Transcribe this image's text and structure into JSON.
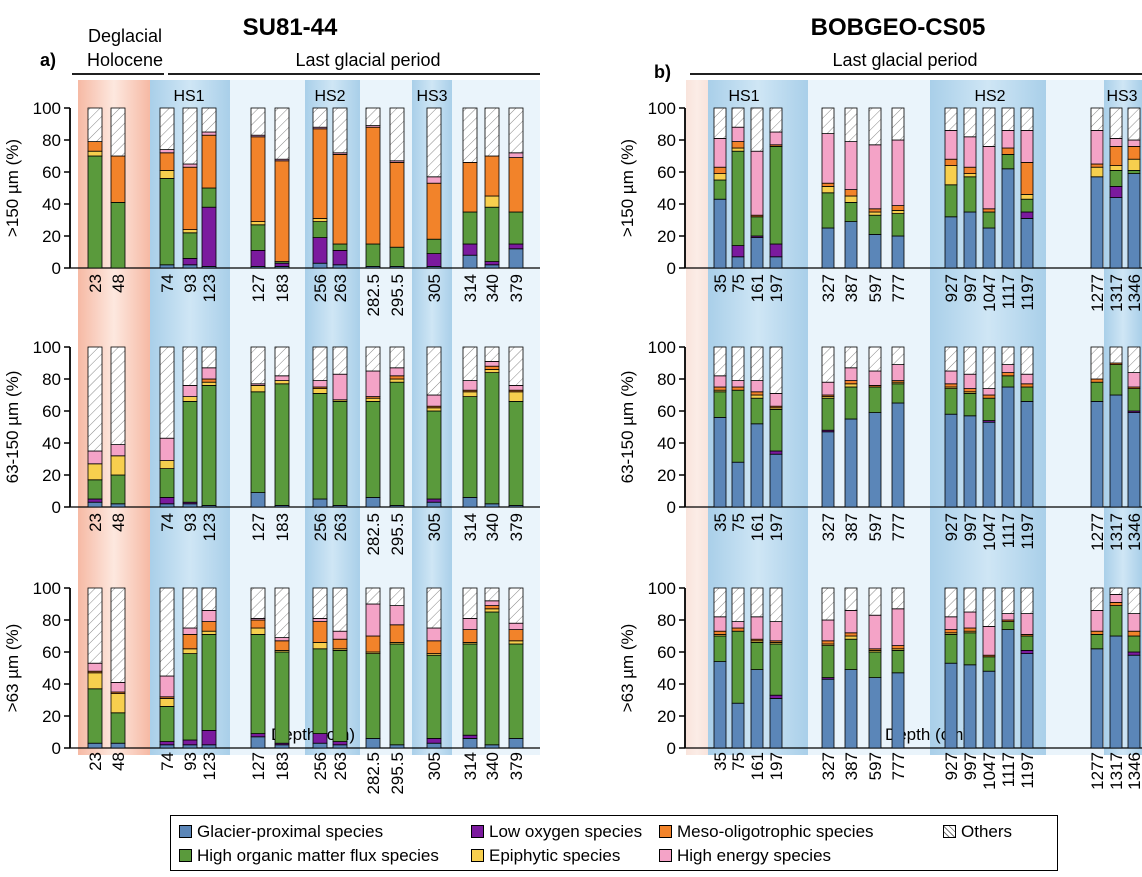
{
  "panels": [
    {
      "title": "SU81-44",
      "panel_letter": "a)",
      "period_labels": {
        "deglacial": "Deglacial",
        "holocene": "Holocene",
        "last_glacial": "Last glacial period"
      },
      "events": [
        "HS1",
        "HS2",
        "HS3"
      ]
    },
    {
      "title": "BOBGEO-CS05",
      "panel_letter": "b)",
      "period_labels": {
        "last_glacial": "Last glacial period"
      },
      "events": [
        "HS1",
        "HS2",
        "HS3"
      ]
    }
  ],
  "axis_labels": {
    "y_150": ">150 µm (%)",
    "y_63_150": "63-150 µm (%)",
    "y_63": ">63 µm (%)",
    "x": "Depth (cm)"
  },
  "y_ticks": [
    "0",
    "20",
    "40",
    "60",
    "80",
    "100"
  ],
  "legend": {
    "items": [
      {
        "key": "glacier",
        "label": "Glacier-proximal species",
        "color": "#5b86b8"
      },
      {
        "key": "lowox",
        "label": "Low oxygen species",
        "color": "#7b1a9e"
      },
      {
        "key": "meso",
        "label": "Meso-oligotrophic species",
        "color": "#f2832a"
      },
      {
        "key": "others",
        "label": "Others",
        "color": "#ffffff"
      },
      {
        "key": "organic",
        "label": "High organic matter flux species",
        "color": "#5a9a3c"
      },
      {
        "key": "epiphytic",
        "label": "Epiphytic species",
        "color": "#f7cf4e"
      },
      {
        "key": "energy",
        "label": "High energy species",
        "color": "#f4a3c7"
      }
    ]
  },
  "chart_data": [
    {
      "type": "bar",
      "stacked": true,
      "core": "SU81-44",
      "ylim": [
        0,
        100
      ],
      "ylabel": ">150 µm (%)",
      "categories": [
        "23",
        "48",
        "74",
        "93",
        "123",
        "127",
        "183",
        "256",
        "263",
        "282.5",
        "295.5",
        "305",
        "314",
        "340",
        "379"
      ],
      "series": [
        {
          "name": "Glacier-proximal species",
          "values": [
            0,
            0,
            2,
            2,
            1,
            1,
            1,
            3,
            2,
            1,
            1,
            1,
            8,
            2,
            12
          ]
        },
        {
          "name": "Low oxygen species",
          "values": [
            0,
            0,
            0,
            4,
            37,
            10,
            2,
            16,
            9,
            0,
            0,
            8,
            7,
            2,
            3
          ]
        },
        {
          "name": "High organic matter flux species",
          "values": [
            70,
            41,
            54,
            16,
            12,
            16,
            1,
            10,
            4,
            14,
            12,
            9,
            20,
            34,
            20
          ]
        },
        {
          "name": "Epiphytic species",
          "values": [
            3,
            0,
            5,
            2,
            0,
            2,
            0,
            2,
            0,
            0,
            0,
            0,
            0,
            7,
            0
          ]
        },
        {
          "name": "Meso-oligotrophic species",
          "values": [
            6,
            29,
            11,
            39,
            33,
            53,
            63,
            56,
            56,
            73,
            53,
            35,
            31,
            25,
            34
          ]
        },
        {
          "name": "High energy species",
          "values": [
            0,
            0,
            2,
            2,
            2,
            1,
            1,
            1,
            1,
            1,
            1,
            4,
            0,
            0,
            3
          ]
        },
        {
          "name": "Others",
          "values": [
            21,
            30,
            26,
            35,
            15,
            17,
            32,
            12,
            28,
            11,
            33,
            43,
            34,
            30,
            28
          ]
        }
      ]
    },
    {
      "type": "bar",
      "stacked": true,
      "core": "SU81-44",
      "ylim": [
        0,
        100
      ],
      "ylabel": "63-150 µm (%)",
      "categories": [
        "23",
        "48",
        "74",
        "93",
        "123",
        "127",
        "183",
        "256",
        "263",
        "282.5",
        "295.5",
        "305",
        "314",
        "340",
        "379"
      ],
      "series": [
        {
          "name": "Glacier-proximal species",
          "values": [
            3,
            2,
            2,
            2,
            1,
            9,
            1,
            5,
            1,
            6,
            1,
            3,
            6,
            2,
            1
          ]
        },
        {
          "name": "Low oxygen species",
          "values": [
            2,
            0,
            4,
            1,
            0,
            0,
            0,
            0,
            0,
            0,
            0,
            2,
            0,
            0,
            0
          ]
        },
        {
          "name": "High organic matter flux species",
          "values": [
            12,
            18,
            18,
            63,
            75,
            63,
            76,
            66,
            65,
            60,
            77,
            55,
            63,
            82,
            65
          ]
        },
        {
          "name": "Epiphytic species",
          "values": [
            10,
            12,
            5,
            3,
            2,
            4,
            2,
            3,
            1,
            2,
            2,
            2,
            3,
            2,
            6
          ]
        },
        {
          "name": "Meso-oligotrophic species",
          "values": [
            0,
            0,
            0,
            0,
            2,
            0,
            0,
            1,
            0,
            1,
            2,
            1,
            1,
            2,
            1
          ]
        },
        {
          "name": "High energy species",
          "values": [
            8,
            7,
            14,
            7,
            7,
            1,
            3,
            4,
            16,
            16,
            5,
            7,
            6,
            3,
            3
          ]
        },
        {
          "name": "Others",
          "values": [
            65,
            61,
            57,
            24,
            13,
            23,
            18,
            21,
            17,
            15,
            13,
            30,
            21,
            9,
            24
          ]
        }
      ]
    },
    {
      "type": "bar",
      "stacked": true,
      "core": "SU81-44",
      "ylim": [
        0,
        100
      ],
      "ylabel": ">63 µm (%)",
      "xlabel": "Depth (cm)",
      "categories": [
        "23",
        "48",
        "74",
        "93",
        "123",
        "127",
        "183",
        "256",
        "263",
        "282.5",
        "295.5",
        "305",
        "314",
        "340",
        "379"
      ],
      "series": [
        {
          "name": "Glacier-proximal species",
          "values": [
            3,
            3,
            2,
            2,
            2,
            7,
            2,
            3,
            2,
            6,
            2,
            3,
            6,
            2,
            6
          ]
        },
        {
          "name": "Low oxygen species",
          "values": [
            0,
            0,
            2,
            3,
            9,
            2,
            1,
            6,
            2,
            0,
            0,
            3,
            2,
            0,
            0
          ]
        },
        {
          "name": "High organic matter flux species",
          "values": [
            34,
            19,
            22,
            54,
            60,
            62,
            57,
            53,
            57,
            53,
            63,
            52,
            57,
            83,
            59
          ]
        },
        {
          "name": "Epiphytic species",
          "values": [
            10,
            12,
            5,
            3,
            2,
            4,
            1,
            4,
            1,
            1,
            1,
            1,
            1,
            2,
            2
          ]
        },
        {
          "name": "Meso-oligotrophic species",
          "values": [
            1,
            1,
            1,
            9,
            6,
            5,
            6,
            13,
            6,
            10,
            11,
            8,
            8,
            2,
            7
          ]
        },
        {
          "name": "High energy species",
          "values": [
            5,
            6,
            13,
            4,
            7,
            1,
            2,
            2,
            5,
            20,
            12,
            8,
            7,
            3,
            4
          ]
        },
        {
          "name": "Others",
          "values": [
            47,
            59,
            55,
            25,
            14,
            19,
            31,
            19,
            27,
            10,
            11,
            25,
            19,
            8,
            22
          ]
        }
      ]
    },
    {
      "type": "bar",
      "stacked": true,
      "core": "BOBGEO-CS05",
      "ylim": [
        0,
        100
      ],
      "ylabel": ">150 µm (%)",
      "categories": [
        "35",
        "75",
        "161",
        "197",
        "327",
        "387",
        "597",
        "777",
        "927",
        "997",
        "1047",
        "1117",
        "1197",
        "1277",
        "1317",
        "1346"
      ],
      "series": [
        {
          "name": "Glacier-proximal species",
          "values": [
            43,
            7,
            19,
            7,
            25,
            29,
            21,
            20,
            32,
            35,
            25,
            62,
            31,
            57,
            44,
            59
          ]
        },
        {
          "name": "Low oxygen species",
          "values": [
            0,
            7,
            1,
            8,
            0,
            0,
            0,
            0,
            0,
            0,
            0,
            0,
            4,
            0,
            7,
            0
          ]
        },
        {
          "name": "High organic matter flux species",
          "values": [
            12,
            59,
            12,
            61,
            22,
            12,
            12,
            14,
            20,
            22,
            10,
            9,
            8,
            0,
            10,
            2
          ]
        },
        {
          "name": "Epiphytic species",
          "values": [
            4,
            2,
            0,
            0,
            4,
            4,
            2,
            2,
            12,
            2,
            0,
            0,
            3,
            6,
            3,
            7
          ]
        },
        {
          "name": "Meso-oligotrophic species",
          "values": [
            4,
            4,
            1,
            1,
            2,
            4,
            2,
            3,
            4,
            4,
            2,
            4,
            20,
            2,
            12,
            8
          ]
        },
        {
          "name": "High energy species",
          "values": [
            18,
            9,
            40,
            8,
            31,
            30,
            40,
            41,
            18,
            19,
            39,
            11,
            20,
            21,
            5,
            4
          ]
        },
        {
          "name": "Others",
          "values": [
            19,
            12,
            27,
            15,
            16,
            21,
            23,
            20,
            14,
            18,
            24,
            14,
            14,
            14,
            19,
            20
          ]
        }
      ]
    },
    {
      "type": "bar",
      "stacked": true,
      "core": "BOBGEO-CS05",
      "ylim": [
        0,
        100
      ],
      "ylabel": "63-150 µm (%)",
      "categories": [
        "35",
        "75",
        "161",
        "197",
        "327",
        "387",
        "597",
        "777",
        "927",
        "997",
        "1047",
        "1117",
        "1197",
        "1277",
        "1317",
        "1346"
      ],
      "series": [
        {
          "name": "Glacier-proximal species",
          "values": [
            56,
            28,
            52,
            33,
            47,
            55,
            59,
            65,
            58,
            57,
            53,
            75,
            66,
            66,
            70,
            59
          ]
        },
        {
          "name": "Low oxygen species",
          "values": [
            0,
            0,
            0,
            2,
            1,
            0,
            0,
            0,
            0,
            0,
            1,
            0,
            0,
            0,
            0,
            1
          ]
        },
        {
          "name": "High organic matter flux species",
          "values": [
            16,
            45,
            16,
            26,
            20,
            20,
            16,
            12,
            16,
            14,
            14,
            7,
            9,
            12,
            19,
            14
          ]
        },
        {
          "name": "Epiphytic species",
          "values": [
            1,
            0,
            2,
            1,
            1,
            2,
            0,
            1,
            1,
            1,
            0,
            0,
            0,
            0,
            0,
            0
          ]
        },
        {
          "name": "Meso-oligotrophic species",
          "values": [
            2,
            2,
            2,
            1,
            1,
            2,
            1,
            1,
            2,
            2,
            2,
            2,
            2,
            2,
            1,
            1
          ]
        },
        {
          "name": "High energy species",
          "values": [
            7,
            4,
            7,
            8,
            8,
            8,
            9,
            10,
            8,
            9,
            4,
            5,
            6,
            0,
            0,
            9
          ]
        },
        {
          "name": "Others",
          "values": [
            18,
            21,
            21,
            29,
            22,
            13,
            15,
            11,
            15,
            17,
            26,
            11,
            17,
            20,
            10,
            16
          ]
        }
      ]
    },
    {
      "type": "bar",
      "stacked": true,
      "core": "BOBGEO-CS05",
      "ylim": [
        0,
        100
      ],
      "ylabel": ">63 µm (%)",
      "xlabel": "Depth (cm)",
      "categories": [
        "35",
        "75",
        "161",
        "197",
        "327",
        "387",
        "597",
        "777",
        "927",
        "997",
        "1047",
        "1117",
        "1197",
        "1277",
        "1317",
        "1346"
      ],
      "series": [
        {
          "name": "Glacier-proximal species",
          "values": [
            54,
            28,
            49,
            31,
            43,
            49,
            44,
            47,
            53,
            52,
            48,
            74,
            59,
            62,
            70,
            58
          ]
        },
        {
          "name": "Low oxygen species",
          "values": [
            0,
            0,
            0,
            2,
            1,
            0,
            0,
            0,
            0,
            0,
            0,
            0,
            2,
            0,
            0,
            2
          ]
        },
        {
          "name": "High organic matter flux species",
          "values": [
            16,
            45,
            17,
            32,
            20,
            19,
            16,
            14,
            18,
            20,
            9,
            5,
            9,
            9,
            19,
            10
          ]
        },
        {
          "name": "Epiphytic species",
          "values": [
            1,
            0,
            1,
            1,
            1,
            2,
            1,
            1,
            1,
            1,
            0,
            0,
            0,
            0,
            0,
            0
          ]
        },
        {
          "name": "Meso-oligotrophic species",
          "values": [
            2,
            2,
            1,
            1,
            2,
            2,
            1,
            2,
            2,
            2,
            1,
            1,
            1,
            2,
            2,
            3
          ]
        },
        {
          "name": "High energy species",
          "values": [
            9,
            4,
            14,
            12,
            13,
            14,
            21,
            23,
            8,
            10,
            18,
            4,
            13,
            13,
            5,
            11
          ]
        },
        {
          "name": "Others",
          "values": [
            18,
            21,
            18,
            21,
            20,
            14,
            17,
            13,
            18,
            15,
            24,
            16,
            16,
            14,
            4,
            16
          ]
        }
      ]
    }
  ]
}
